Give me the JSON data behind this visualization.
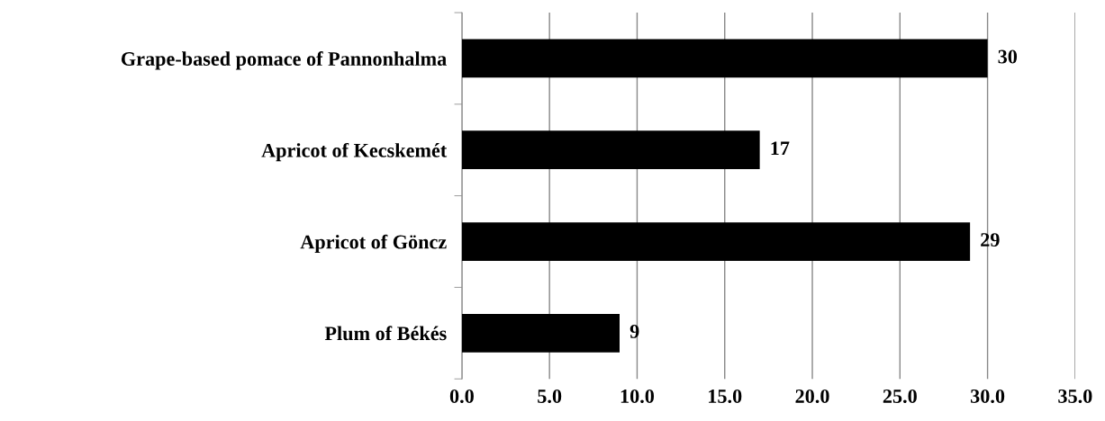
{
  "chart_data": {
    "type": "bar",
    "orientation": "horizontal",
    "categories": [
      "Grape-based pomace of Pannonhalma",
      "Apricot of Kecskemét",
      "Apricot of Göncz",
      "Plum of Békés"
    ],
    "values": [
      30,
      17,
      29,
      9
    ],
    "color": "#000000",
    "xlim": [
      0,
      35
    ],
    "xticks": [
      {
        "value": 0,
        "label": "0.0"
      },
      {
        "value": 5,
        "label": "5.0"
      },
      {
        "value": 10,
        "label": "10.0"
      },
      {
        "value": 15,
        "label": "15.0"
      },
      {
        "value": 20,
        "label": "20.0"
      },
      {
        "value": 25,
        "label": "25.0"
      },
      {
        "value": 30,
        "label": "30.0"
      },
      {
        "value": 35,
        "label": "35.0"
      }
    ],
    "grid": "x",
    "data_labels": true
  }
}
